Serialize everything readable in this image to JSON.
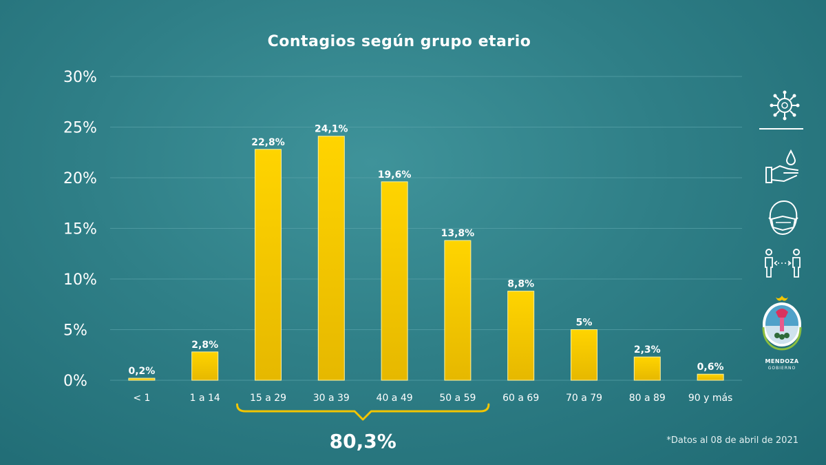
{
  "chart_data": {
    "type": "bar",
    "title": "Contagios según grupo etario",
    "categories": [
      "< 1",
      "1 a 14",
      "15 a 29",
      "30 a 39",
      "40 a 49",
      "50 a 59",
      "60 a 69",
      "70 a 79",
      "80 a 89",
      "90 y más"
    ],
    "values": [
      0.2,
      2.8,
      22.8,
      24.1,
      19.6,
      13.8,
      8.8,
      5,
      2.3,
      0.6
    ],
    "data_labels": [
      "0,2%",
      "2,8%",
      "22,8%",
      "24,1%",
      "19,6%",
      "13,8%",
      "8,8%",
      "5%",
      "2,3%",
      "0,6%"
    ],
    "yticks": [
      0,
      5,
      10,
      15,
      20,
      25,
      30
    ],
    "ytick_labels": [
      "0%",
      "5%",
      "10%",
      "15%",
      "20%",
      "25%",
      "30%"
    ],
    "ylim": [
      0,
      30
    ],
    "grid": true,
    "bar_color": "#f2c500",
    "annotation": {
      "text": "80,3%",
      "from_category": "15 a 29",
      "to_category": "50 a 59"
    },
    "footnote": "*Datos al 08 de abril de 2021"
  },
  "colors": {
    "background": "#2f7f87",
    "text": "#ffffff",
    "grid": "#5aa3a9",
    "accent": "#f2c500"
  },
  "sidebar": {
    "icons": [
      "virus-icon",
      "hand-washing-icon",
      "face-mask-icon",
      "social-distance-icon"
    ],
    "logo": {
      "text_line1": "MENDOZA",
      "text_line2": "GOBIERNO"
    }
  }
}
